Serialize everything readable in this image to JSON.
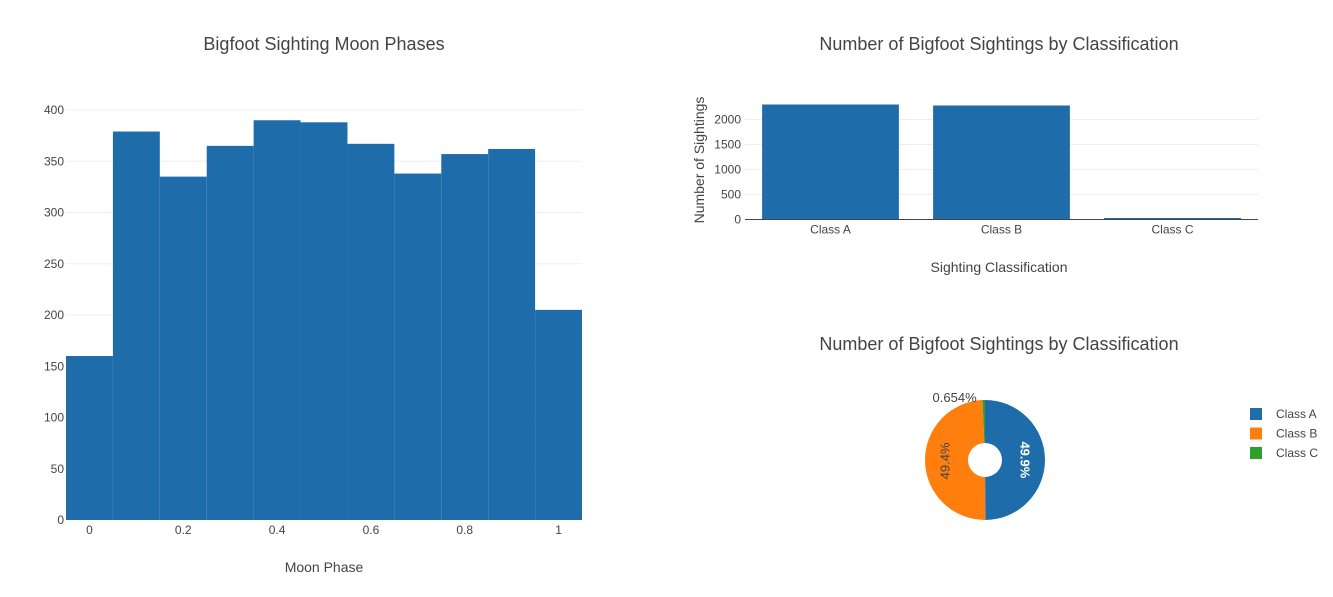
{
  "chart_data": [
    {
      "type": "bar",
      "subtype": "histogram",
      "title": "Bigfoot Sighting Moon Phases",
      "xlabel": "Moon Phase",
      "ylabel": "",
      "xlim": [
        -0.05,
        1.05
      ],
      "ylim": [
        0,
        415
      ],
      "x_ticks": [
        0,
        0.2,
        0.4,
        0.6,
        0.8,
        1
      ],
      "x_tick_labels": [
        "0",
        "0.2",
        "0.4",
        "0.6",
        "0.8",
        "1"
      ],
      "y_ticks": [
        0,
        50,
        100,
        150,
        200,
        250,
        300,
        350,
        400
      ],
      "bin_edges": [
        -0.05,
        0.05,
        0.15,
        0.25,
        0.35,
        0.45,
        0.55,
        0.65,
        0.75,
        0.85,
        0.95,
        1.05
      ],
      "values": [
        160,
        379,
        335,
        365,
        390,
        388,
        367,
        338,
        357,
        362,
        205
      ],
      "color": "#1f6cab",
      "grid": true
    },
    {
      "type": "bar",
      "title": "Number of Bigfoot Sightings by Classification",
      "xlabel": "Sighting Classification",
      "ylabel": "Number of Sightings",
      "categories": [
        "Class A",
        "Class B",
        "Class C"
      ],
      "values": [
        2300,
        2280,
        30
      ],
      "ylim": [
        0,
        2400
      ],
      "y_ticks": [
        0,
        500,
        1000,
        1500,
        2000
      ],
      "color": "#1f6cab",
      "grid": true
    },
    {
      "type": "pie",
      "donut": true,
      "title": "Number of Bigfoot Sightings by Classification",
      "labels": [
        "Class A",
        "Class B",
        "Class C"
      ],
      "values": [
        49.9,
        49.4,
        0.654
      ],
      "percent_labels": [
        "49.9%",
        "49.4%",
        "0.654%"
      ],
      "colors": [
        "#1f6cab",
        "#ff7f0e",
        "#2ca02c"
      ],
      "legend_position": "right"
    }
  ]
}
